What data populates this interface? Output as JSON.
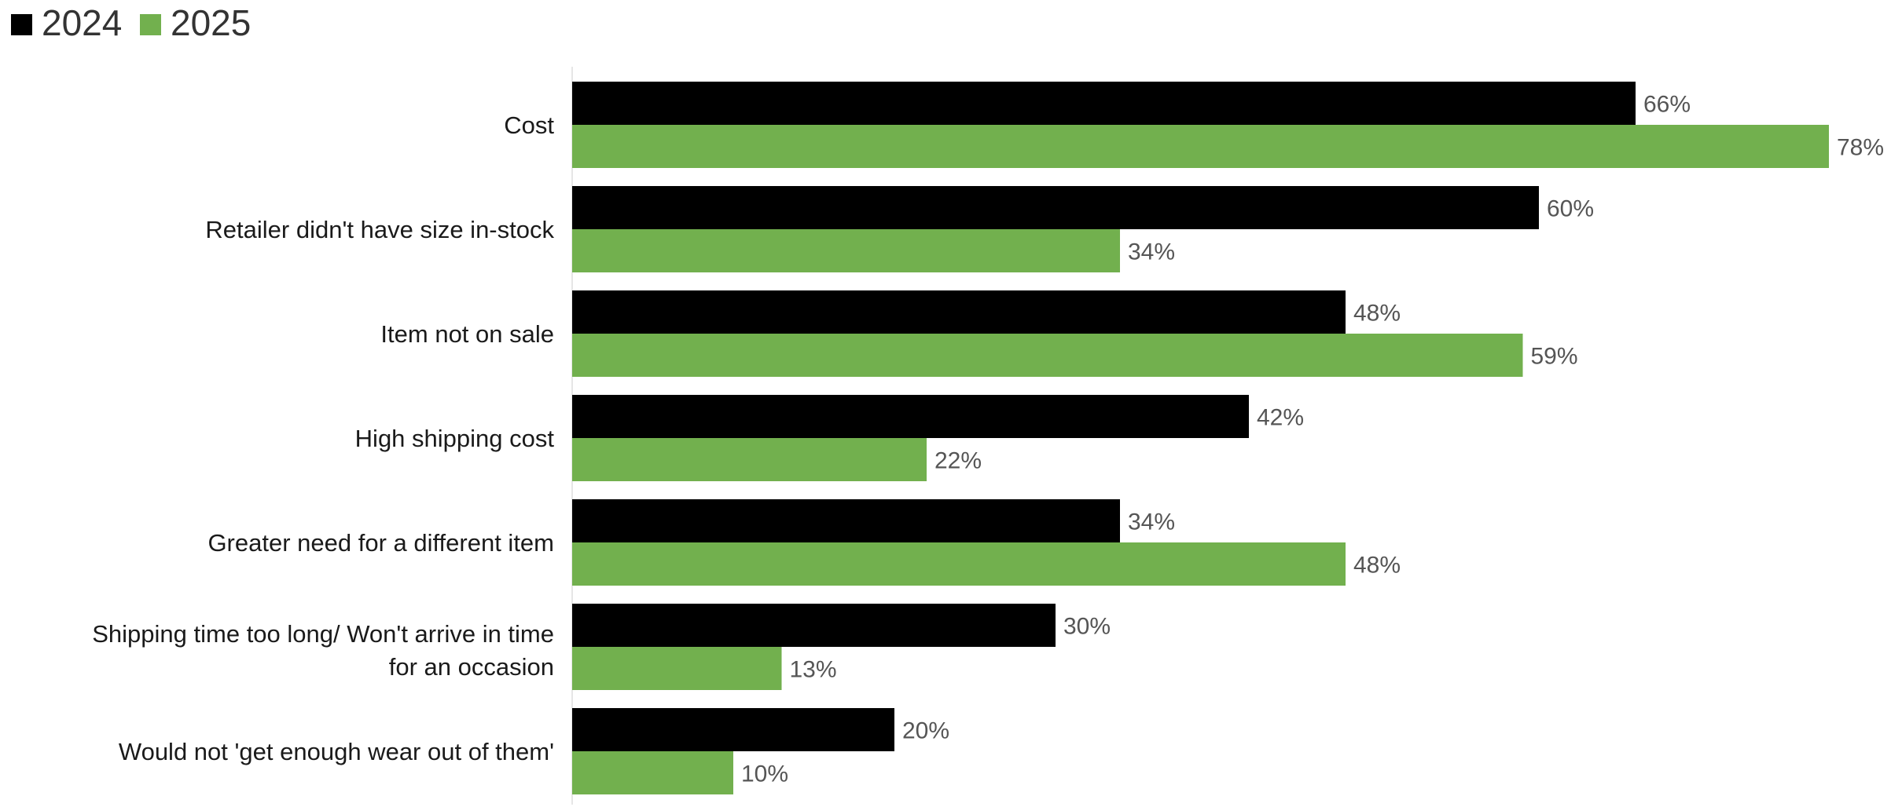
{
  "chart_data": {
    "type": "bar",
    "orientation": "horizontal",
    "title": "",
    "xlabel": "",
    "ylabel": "",
    "xlim": [
      0,
      78
    ],
    "grid": false,
    "legend_position": "top-left",
    "categories": [
      "Cost",
      "Retailer didn't have size in-stock",
      "Item not on sale",
      "High shipping cost",
      "Greater need for a different item",
      "Shipping time too long/ Won't arrive in time for an occasion",
      "Would not 'get enough wear out of them'"
    ],
    "series": [
      {
        "name": "2024",
        "color": "#000000",
        "values": [
          66,
          60,
          48,
          42,
          34,
          30,
          20
        ],
        "labels": [
          "66%",
          "60%",
          "48%",
          "42%",
          "34%",
          "30%",
          "20%"
        ]
      },
      {
        "name": "2025",
        "color": "#72b04e",
        "values": [
          78,
          34,
          59,
          22,
          48,
          13,
          10
        ],
        "labels": [
          "78%",
          "34%",
          "59%",
          "22%",
          "48%",
          "13%",
          "10%"
        ]
      }
    ]
  }
}
